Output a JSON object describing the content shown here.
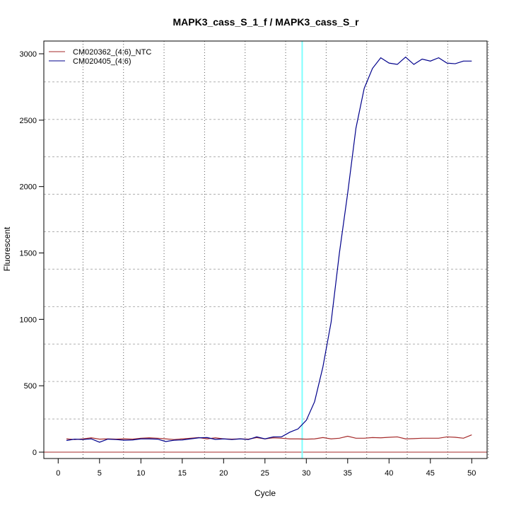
{
  "chart_data": {
    "type": "line",
    "title": "MAPK3_cass_S_1_f / MAPK3_cass_S_r",
    "xlabel": "Cycle",
    "ylabel": "Fluorescent",
    "xlim": [
      -1.5,
      52.5
    ],
    "ylim": [
      -60,
      3060
    ],
    "xticks": [
      0,
      5,
      10,
      15,
      20,
      25,
      30,
      35,
      40,
      45,
      50
    ],
    "yticks": [
      0,
      500,
      1000,
      1500,
      2000,
      2500,
      3000
    ],
    "grid": true,
    "threshold_cycle": 29.5,
    "legend_position": "top-left",
    "colors": {
      "ntc": "#a52a2a",
      "sample": "#00008b",
      "threshold": "#7fffff",
      "baseline": "#a52a2a",
      "grid": "#b0b0b0"
    },
    "x": [
      1,
      2,
      3,
      4,
      5,
      6,
      7,
      8,
      9,
      10,
      11,
      12,
      13,
      14,
      15,
      16,
      17,
      18,
      19,
      20,
      21,
      22,
      23,
      24,
      25,
      26,
      27,
      28,
      29,
      30,
      31,
      32,
      33,
      34,
      35,
      36,
      37,
      38,
      39,
      40,
      41,
      42,
      43,
      44,
      45,
      46,
      47,
      48,
      49,
      50
    ],
    "series": [
      {
        "name": "CM020362_(4:6)_NTC",
        "color": "#a52a2a",
        "values": [
          100,
          95,
          100,
          108,
          98,
          100,
          98,
          100,
          98,
          105,
          108,
          105,
          100,
          95,
          100,
          105,
          110,
          100,
          108,
          100,
          98,
          100,
          98,
          110,
          100,
          108,
          105,
          100,
          100,
          98,
          100,
          110,
          100,
          105,
          120,
          105,
          105,
          110,
          108,
          112,
          115,
          100,
          102,
          105,
          105,
          105,
          115,
          112,
          105,
          130
        ]
      },
      {
        "name": "CM020405_(4:6)",
        "color": "#00008b",
        "values": [
          88,
          98,
          95,
          100,
          75,
          98,
          95,
          90,
          92,
          100,
          100,
          98,
          80,
          90,
          92,
          100,
          108,
          110,
          96,
          100,
          95,
          100,
          95,
          115,
          100,
          115,
          115,
          150,
          175,
          240,
          380,
          640,
          980,
          1500,
          1950,
          2440,
          2740,
          2890,
          2970,
          2930,
          2920,
          2975,
          2920,
          2960,
          2945,
          2970,
          2930,
          2925,
          2945,
          2945
        ]
      }
    ]
  }
}
